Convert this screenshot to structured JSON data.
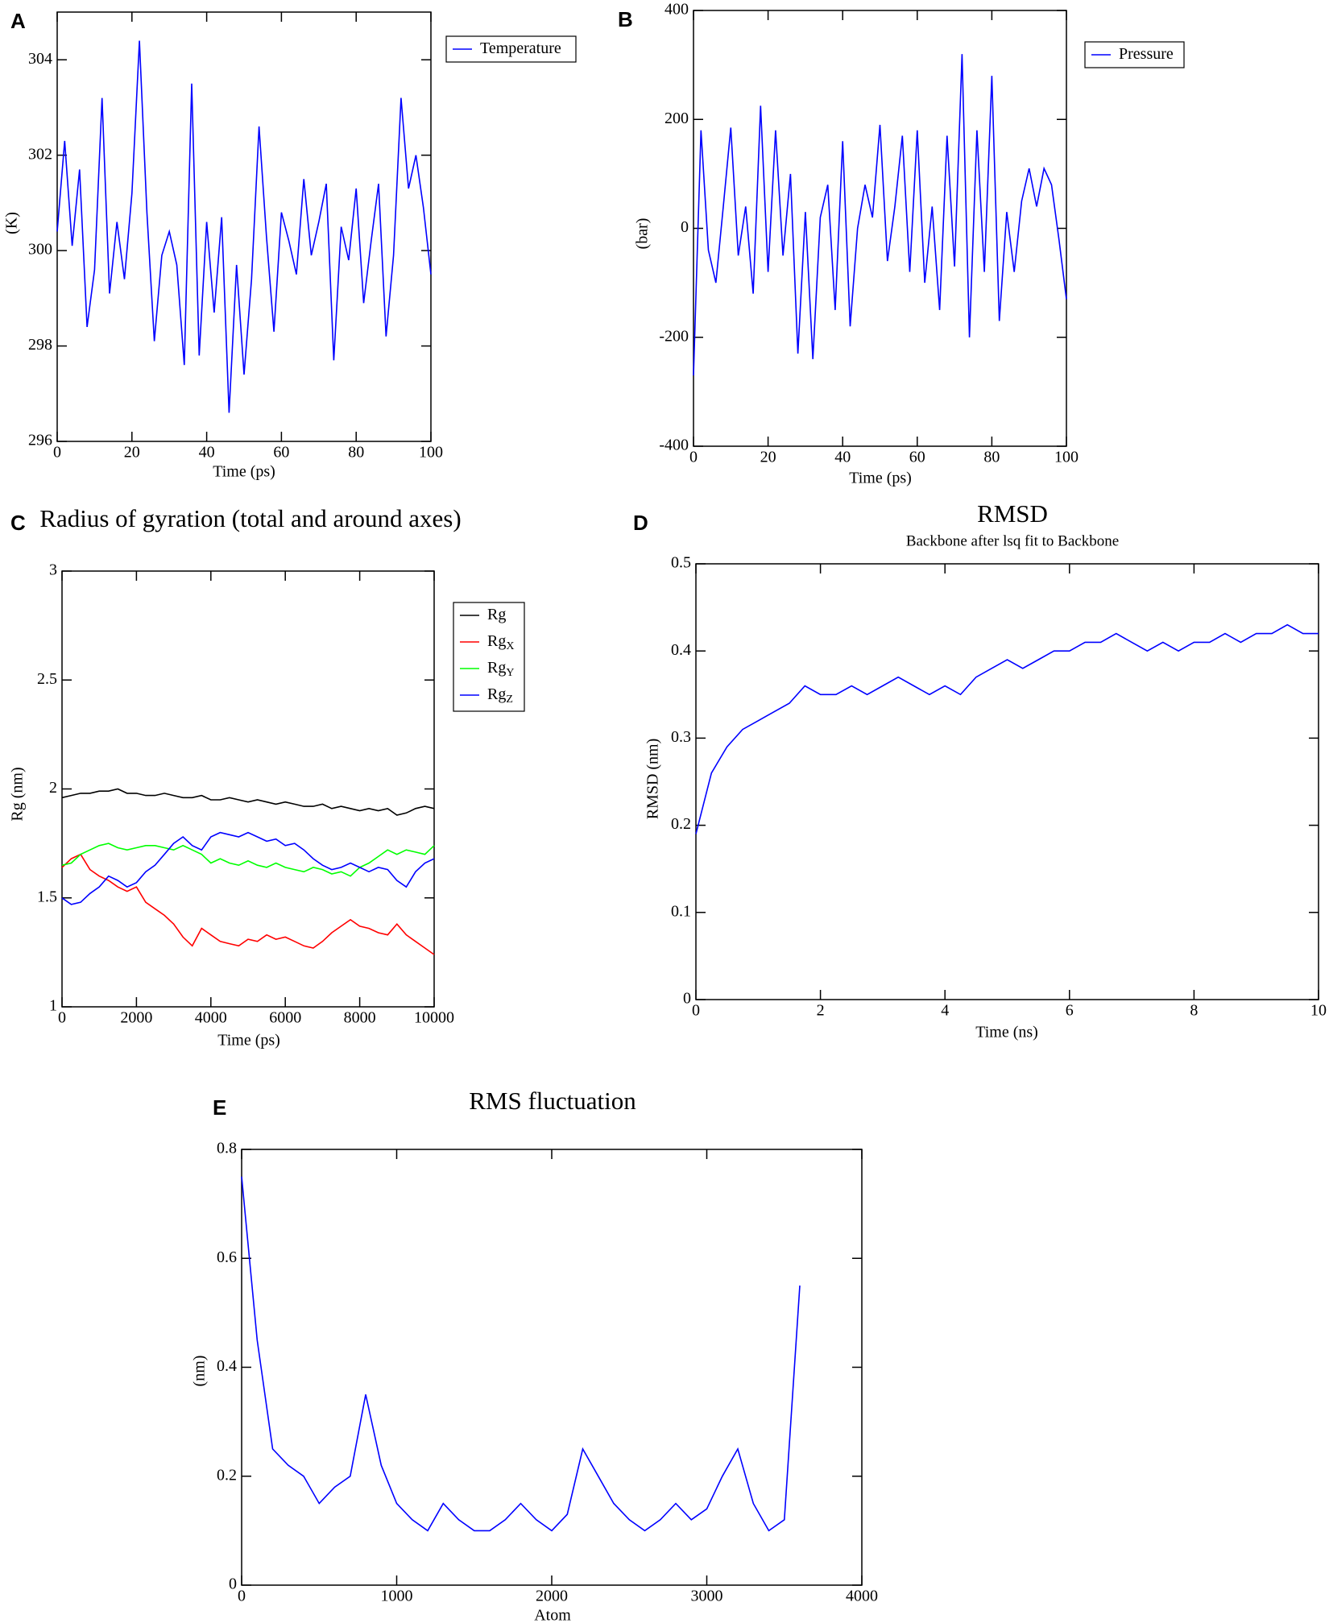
{
  "chart_data": [
    {
      "type": "line",
      "panel_label": "A",
      "xlabel": "Time (ps)",
      "ylabel": "(K)",
      "legend": true,
      "xlim": [
        0,
        100
      ],
      "xticks": [
        0,
        20,
        40,
        60,
        80,
        100
      ],
      "ylim": [
        296,
        305
      ],
      "yticks": [
        296,
        298,
        300,
        302,
        304
      ],
      "x": [
        0,
        2,
        4,
        6,
        8,
        10,
        12,
        14,
        16,
        18,
        20,
        22,
        24,
        26,
        28,
        30,
        32,
        34,
        36,
        38,
        40,
        42,
        44,
        46,
        48,
        50,
        52,
        54,
        56,
        58,
        60,
        62,
        64,
        66,
        68,
        70,
        72,
        74,
        76,
        78,
        80,
        82,
        84,
        86,
        88,
        90,
        92,
        94,
        96,
        98,
        100
      ],
      "series": [
        {
          "name": "Temperature",
          "color": "#0000ff",
          "values": [
            300.4,
            302.3,
            300.1,
            301.7,
            298.4,
            299.6,
            303.2,
            299.1,
            300.6,
            299.4,
            301.2,
            304.4,
            300.8,
            298.1,
            299.9,
            300.4,
            299.7,
            297.6,
            303.5,
            297.8,
            300.6,
            298.7,
            300.7,
            296.6,
            299.7,
            297.4,
            299.4,
            302.6,
            300.3,
            298.3,
            300.8,
            300.2,
            299.5,
            301.5,
            299.9,
            300.6,
            301.4,
            297.7,
            300.5,
            299.8,
            301.3,
            298.9,
            300.2,
            301.4,
            298.2,
            299.9,
            303.2,
            301.3,
            302.0,
            300.9,
            299.5
          ]
        }
      ]
    },
    {
      "type": "line",
      "panel_label": "B",
      "xlabel": "Time (ps)",
      "ylabel": "(bar)",
      "legend": true,
      "xlim": [
        0,
        100
      ],
      "xticks": [
        0,
        20,
        40,
        60,
        80,
        100
      ],
      "ylim": [
        -400,
        400
      ],
      "yticks": [
        -400,
        -200,
        0,
        200,
        400
      ],
      "x": [
        0,
        2,
        4,
        6,
        8,
        10,
        12,
        14,
        16,
        18,
        20,
        22,
        24,
        26,
        28,
        30,
        32,
        34,
        36,
        38,
        40,
        42,
        44,
        46,
        48,
        50,
        52,
        54,
        56,
        58,
        60,
        62,
        64,
        66,
        68,
        70,
        72,
        74,
        76,
        78,
        80,
        82,
        84,
        86,
        88,
        90,
        92,
        94,
        96,
        98,
        100
      ],
      "series": [
        {
          "name": "Pressure",
          "color": "#0000ff",
          "values": [
            -270,
            180,
            -40,
            -100,
            40,
            185,
            -50,
            40,
            -120,
            225,
            -80,
            180,
            -50,
            100,
            -230,
            30,
            -240,
            20,
            80,
            -150,
            160,
            -180,
            0,
            80,
            20,
            190,
            -60,
            40,
            170,
            -80,
            180,
            -100,
            40,
            -150,
            170,
            -70,
            320,
            -200,
            180,
            -80,
            280,
            -170,
            30,
            -80,
            50,
            110,
            40,
            110,
            80,
            -20,
            -130
          ]
        }
      ]
    },
    {
      "type": "line",
      "panel_label": "C",
      "title": "Radius of gyration (total and around axes)",
      "xlabel": "Time (ps)",
      "ylabel": "Rg (nm)",
      "legend": true,
      "xlim": [
        0,
        10000
      ],
      "xticks": [
        0,
        2000,
        4000,
        6000,
        8000,
        10000
      ],
      "ylim": [
        1,
        3
      ],
      "yticks": [
        1,
        1.5,
        2,
        2.5,
        3
      ],
      "x": [
        0,
        250,
        500,
        750,
        1000,
        1250,
        1500,
        1750,
        2000,
        2250,
        2500,
        2750,
        3000,
        3250,
        3500,
        3750,
        4000,
        4250,
        4500,
        4750,
        5000,
        5250,
        5500,
        5750,
        6000,
        6250,
        6500,
        6750,
        7000,
        7250,
        7500,
        7750,
        8000,
        8250,
        8500,
        8750,
        9000,
        9250,
        9500,
        9750,
        10000
      ],
      "series": [
        {
          "name": "Rg",
          "color": "#000000",
          "values": [
            1.96,
            1.97,
            1.98,
            1.98,
            1.99,
            1.99,
            2.0,
            1.98,
            1.98,
            1.97,
            1.97,
            1.98,
            1.97,
            1.96,
            1.96,
            1.97,
            1.95,
            1.95,
            1.96,
            1.95,
            1.94,
            1.95,
            1.94,
            1.93,
            1.94,
            1.93,
            1.92,
            1.92,
            1.93,
            1.91,
            1.92,
            1.91,
            1.9,
            1.91,
            1.9,
            1.91,
            1.88,
            1.89,
            1.91,
            1.92,
            1.91
          ]
        },
        {
          "name": "Rg",
          "name_sub": "X",
          "color": "#ff0000",
          "values": [
            1.64,
            1.68,
            1.7,
            1.63,
            1.6,
            1.58,
            1.55,
            1.53,
            1.55,
            1.48,
            1.45,
            1.42,
            1.38,
            1.32,
            1.28,
            1.36,
            1.33,
            1.3,
            1.29,
            1.28,
            1.31,
            1.3,
            1.33,
            1.31,
            1.32,
            1.3,
            1.28,
            1.27,
            1.3,
            1.34,
            1.37,
            1.4,
            1.37,
            1.36,
            1.34,
            1.33,
            1.38,
            1.33,
            1.3,
            1.27,
            1.24
          ]
        },
        {
          "name": "Rg",
          "name_sub": "Y",
          "color": "#00ff00",
          "values": [
            1.65,
            1.66,
            1.7,
            1.72,
            1.74,
            1.75,
            1.73,
            1.72,
            1.73,
            1.74,
            1.74,
            1.73,
            1.72,
            1.74,
            1.72,
            1.7,
            1.66,
            1.68,
            1.66,
            1.65,
            1.67,
            1.65,
            1.64,
            1.66,
            1.64,
            1.63,
            1.62,
            1.64,
            1.63,
            1.61,
            1.62,
            1.6,
            1.64,
            1.66,
            1.69,
            1.72,
            1.7,
            1.72,
            1.71,
            1.7,
            1.74
          ]
        },
        {
          "name": "Rg",
          "name_sub": "Z",
          "color": "#0000ff",
          "values": [
            1.5,
            1.47,
            1.48,
            1.52,
            1.55,
            1.6,
            1.58,
            1.55,
            1.57,
            1.62,
            1.65,
            1.7,
            1.75,
            1.78,
            1.74,
            1.72,
            1.78,
            1.8,
            1.79,
            1.78,
            1.8,
            1.78,
            1.76,
            1.77,
            1.74,
            1.75,
            1.72,
            1.68,
            1.65,
            1.63,
            1.64,
            1.66,
            1.64,
            1.62,
            1.64,
            1.63,
            1.58,
            1.55,
            1.62,
            1.66,
            1.68
          ]
        }
      ]
    },
    {
      "type": "line",
      "panel_label": "D",
      "title": "RMSD",
      "subtitle": "Backbone after lsq fit to Backbone",
      "xlabel": "Time (ns)",
      "ylabel": "RMSD (nm)",
      "legend": false,
      "xlim": [
        0,
        10
      ],
      "xticks": [
        0,
        2,
        4,
        6,
        8,
        10
      ],
      "ylim": [
        0,
        0.5
      ],
      "yticks": [
        0,
        0.1,
        0.2,
        0.3,
        0.4,
        0.5
      ],
      "x": [
        0,
        0.25,
        0.5,
        0.75,
        1,
        1.25,
        1.5,
        1.75,
        2,
        2.25,
        2.5,
        2.75,
        3,
        3.25,
        3.5,
        3.75,
        4,
        4.25,
        4.5,
        4.75,
        5,
        5.25,
        5.5,
        5.75,
        6,
        6.25,
        6.5,
        6.75,
        7,
        7.25,
        7.5,
        7.75,
        8,
        8.25,
        8.5,
        8.75,
        9,
        9.25,
        9.5,
        9.75,
        10
      ],
      "series": [
        {
          "color": "#0000ff",
          "values": [
            0.19,
            0.26,
            0.29,
            0.31,
            0.32,
            0.33,
            0.34,
            0.36,
            0.35,
            0.35,
            0.36,
            0.35,
            0.36,
            0.37,
            0.36,
            0.35,
            0.36,
            0.35,
            0.37,
            0.38,
            0.39,
            0.38,
            0.39,
            0.4,
            0.4,
            0.41,
            0.41,
            0.42,
            0.41,
            0.4,
            0.41,
            0.4,
            0.41,
            0.41,
            0.42,
            0.41,
            0.42,
            0.42,
            0.43,
            0.42,
            0.42
          ]
        }
      ]
    },
    {
      "type": "line",
      "panel_label": "E",
      "title": "RMS fluctuation",
      "xlabel": "Atom",
      "ylabel": "(nm)",
      "legend": false,
      "xlim": [
        0,
        4000
      ],
      "xticks": [
        0,
        1000,
        2000,
        3000,
        4000
      ],
      "ylim": [
        0,
        0.8
      ],
      "yticks": [
        0,
        0.2,
        0.4,
        0.6,
        0.8
      ],
      "x": [
        0,
        100,
        200,
        300,
        400,
        500,
        600,
        700,
        800,
        900,
        1000,
        1100,
        1200,
        1300,
        1400,
        1500,
        1600,
        1700,
        1800,
        1900,
        2000,
        2100,
        2200,
        2300,
        2400,
        2500,
        2600,
        2700,
        2800,
        2900,
        3000,
        3100,
        3200,
        3300,
        3400,
        3500,
        3600
      ],
      "series": [
        {
          "color": "#0000ff",
          "values": [
            0.75,
            0.45,
            0.25,
            0.22,
            0.2,
            0.15,
            0.18,
            0.2,
            0.35,
            0.22,
            0.15,
            0.12,
            0.1,
            0.15,
            0.12,
            0.1,
            0.1,
            0.12,
            0.15,
            0.12,
            0.1,
            0.13,
            0.25,
            0.2,
            0.15,
            0.12,
            0.1,
            0.12,
            0.15,
            0.12,
            0.14,
            0.2,
            0.25,
            0.15,
            0.1,
            0.12,
            0.55
          ]
        }
      ]
    }
  ]
}
